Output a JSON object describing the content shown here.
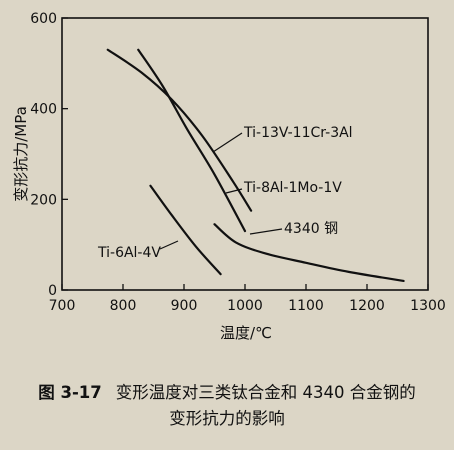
{
  "figure": {
    "number": "图 3-17",
    "caption_line1": "变形温度对三类钛合金和 4340 合金钢的",
    "caption_line2": "变形抗力的影响"
  },
  "chart_data": {
    "type": "line",
    "title": "",
    "xlabel": "温度/℃",
    "ylabel": "变形抗力/MPa",
    "xlim": [
      700,
      1300
    ],
    "ylim": [
      0,
      600
    ],
    "xticks": [
      700,
      800,
      900,
      1000,
      1100,
      1200,
      1300
    ],
    "yticks": [
      0,
      200,
      400,
      600
    ],
    "grid": false,
    "legend": "inline labels",
    "series": [
      {
        "name": "Ti-13V-11Cr-3Al",
        "color": "#111111",
        "x": [
          775,
          830,
          880,
          930,
          980,
          1010
        ],
        "y": [
          530,
          480,
          420,
          340,
          240,
          175
        ]
      },
      {
        "name": "Ti-8Al-1Mo-1V",
        "color": "#111111",
        "x": [
          825,
          865,
          905,
          950,
          1000
        ],
        "y": [
          530,
          450,
          355,
          255,
          130
        ]
      },
      {
        "name": "4340 钢",
        "color": "#111111",
        "x": [
          950,
          985,
          1035,
          1100,
          1170,
          1260
        ],
        "y": [
          145,
          105,
          80,
          60,
          40,
          20
        ]
      },
      {
        "name": "Ti-6Al-4V",
        "color": "#111111",
        "x": [
          845,
          880,
          920,
          960
        ],
        "y": [
          230,
          165,
          95,
          35
        ]
      }
    ]
  }
}
